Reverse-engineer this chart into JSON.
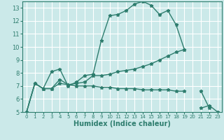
{
  "xlabel": "Humidex (Indice chaleur)",
  "bg_color": "#cbe9e9",
  "grid_color": "#ffffff",
  "line_color": "#2e7d6e",
  "xlim": [
    -0.5,
    23.5
  ],
  "ylim": [
    5,
    13.5
  ],
  "xticks": [
    0,
    1,
    2,
    3,
    4,
    5,
    6,
    7,
    8,
    9,
    10,
    11,
    12,
    13,
    14,
    15,
    16,
    17,
    18,
    19,
    20,
    21,
    22,
    23
  ],
  "yticks": [
    5,
    6,
    7,
    8,
    9,
    10,
    11,
    12,
    13
  ],
  "line1_x": [
    0,
    1,
    2,
    3,
    4,
    5,
    6,
    7,
    8,
    9,
    10,
    11,
    12,
    13,
    14,
    15,
    16,
    17,
    18,
    19,
    21,
    22
  ],
  "line1_y": [
    5.0,
    7.2,
    6.8,
    8.1,
    8.3,
    7.0,
    7.3,
    7.8,
    7.9,
    10.5,
    12.4,
    12.5,
    12.8,
    13.3,
    13.5,
    13.2,
    12.5,
    12.8,
    11.7,
    9.8,
    6.6,
    5.3
  ],
  "line1_break": 19,
  "line2_x": [
    0,
    1,
    2,
    3,
    4,
    5,
    6,
    7,
    8,
    9,
    10,
    11,
    12,
    13,
    14,
    15,
    16,
    17,
    18,
    19
  ],
  "line2_y": [
    5.0,
    7.2,
    6.8,
    6.8,
    7.5,
    7.1,
    7.2,
    7.3,
    7.8,
    7.8,
    7.9,
    8.1,
    8.2,
    8.3,
    8.5,
    8.7,
    9.0,
    9.3,
    9.6,
    9.8
  ],
  "line3_x": [
    0,
    1,
    2,
    3,
    4,
    5,
    6,
    7,
    8,
    9,
    10,
    11,
    12,
    13,
    14,
    15,
    16,
    17,
    18,
    19,
    21,
    22,
    23
  ],
  "line3_y": [
    5.0,
    7.2,
    6.8,
    6.8,
    7.2,
    7.1,
    7.0,
    7.0,
    7.0,
    6.9,
    6.9,
    6.8,
    6.8,
    6.8,
    6.7,
    6.7,
    6.7,
    6.7,
    6.6,
    6.6,
    5.3,
    5.5,
    5.0
  ],
  "line3_break": 19
}
